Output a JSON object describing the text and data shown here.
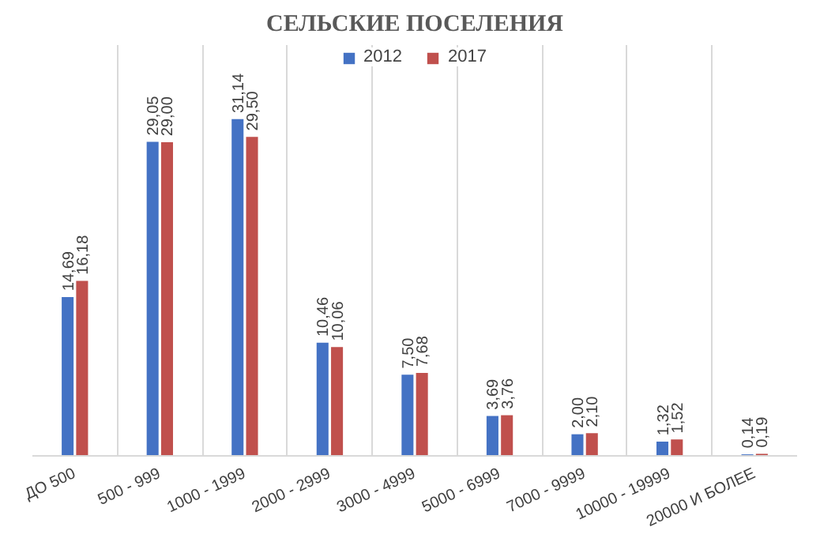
{
  "chart_data": {
    "type": "bar",
    "title": "СЕЛЬСКИЕ ПОСЕЛЕНИЯ",
    "categories": [
      "ДО 500",
      "500 - 999",
      "1000 - 1999",
      "2000 - 2999",
      "3000 - 4999",
      "5000 - 6999",
      "7000 - 9999",
      "10000 - 19999",
      "20000 И БОЛЕЕ"
    ],
    "series": [
      {
        "name": "2012",
        "color": "#4472c4",
        "values": [
          14.69,
          29.05,
          31.14,
          10.46,
          7.5,
          3.69,
          2.0,
          1.32,
          0.14
        ],
        "value_labels": [
          "14,69",
          "29,05",
          "31,14",
          "10,46",
          "7,50",
          "3,69",
          "2,00",
          "1,32",
          "0,14"
        ]
      },
      {
        "name": "2017",
        "color": "#c0504d",
        "values": [
          16.18,
          29.0,
          29.5,
          10.06,
          7.68,
          3.76,
          2.1,
          1.52,
          0.19
        ],
        "value_labels": [
          "16,18",
          "29,00",
          "29,50",
          "10,06",
          "7,68",
          "3,76",
          "2,10",
          "1,52",
          "0,19"
        ]
      }
    ],
    "grid": "x",
    "legend": "top"
  }
}
